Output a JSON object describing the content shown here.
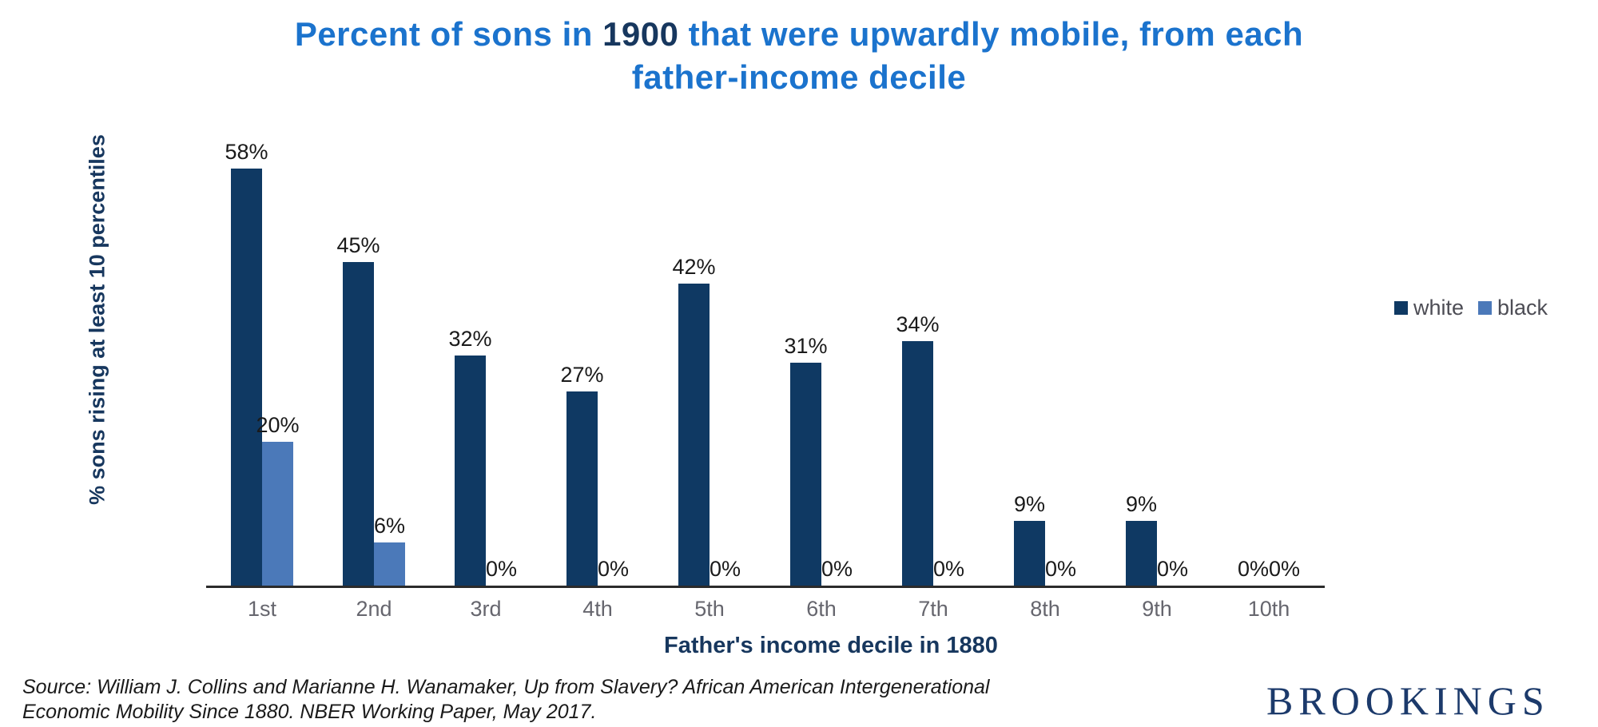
{
  "title": {
    "part1": "Percent of sons in ",
    "year": "1900",
    "part2": " that were upwardly mobile, from each",
    "line2": "father-income decile"
  },
  "chart_data": {
    "type": "bar",
    "categories": [
      "1st",
      "2nd",
      "3rd",
      "4th",
      "5th",
      "6th",
      "7th",
      "8th",
      "9th",
      "10th"
    ],
    "series": [
      {
        "name": "white",
        "color": "#0f3963",
        "values": [
          58,
          45,
          32,
          27,
          42,
          31,
          34,
          9,
          9,
          0
        ]
      },
      {
        "name": "black",
        "color": "#4b79b9",
        "values": [
          20,
          6,
          0,
          0,
          0,
          0,
          0,
          0,
          0,
          0
        ]
      }
    ],
    "value_label_suffix": "%",
    "title": "Percent of sons in 1900 that were upwardly mobile, from each father-income decile",
    "xlabel": "Father's income decile in 1880",
    "ylabel": "% sons rising at least 10 percentiles",
    "ylim": [
      0,
      65
    ],
    "grid": false,
    "legend_position": "right"
  },
  "legend": {
    "items": [
      {
        "label": "white",
        "color": "#0f3963"
      },
      {
        "label": "black",
        "color": "#4b79b9"
      }
    ]
  },
  "source": {
    "line1": "Source: William J. Collins and Marianne H. Wanamaker, Up from Slavery? African American Intergenerational",
    "line2": "Economic Mobility Since 1880. NBER Working Paper, May 2017."
  },
  "brand": "BROOKINGS",
  "colors": {
    "title_blue": "#1b73cd",
    "navy": "#17375e",
    "bar_navy": "#0f3963",
    "bar_blue": "#4b79b9",
    "tick_gray": "#66666e",
    "axis_line": "#2b2b2b"
  }
}
